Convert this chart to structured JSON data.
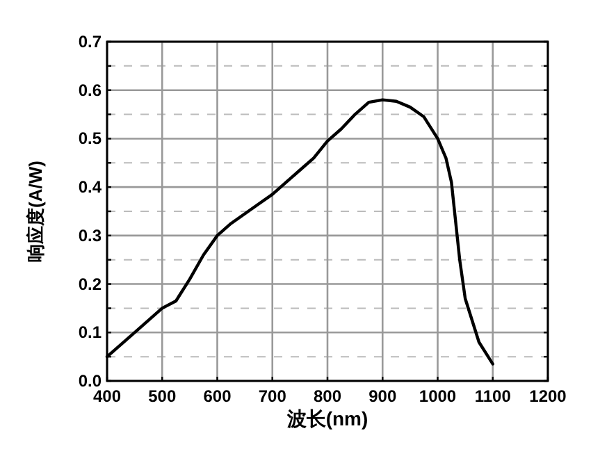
{
  "chart_data": {
    "type": "line",
    "xlabel": "波长(nm)",
    "ylabel": "响应度(A/W)",
    "x": [
      400,
      450,
      500,
      525,
      550,
      575,
      600,
      625,
      650,
      675,
      700,
      725,
      750,
      775,
      800,
      825,
      850,
      875,
      900,
      925,
      950,
      975,
      1000,
      1015,
      1025,
      1040,
      1050,
      1075,
      1100
    ],
    "series": [
      {
        "color": "#000000",
        "values": [
          0.05,
          0.1,
          0.15,
          0.165,
          0.21,
          0.26,
          0.3,
          0.325,
          0.345,
          0.365,
          0.385,
          0.41,
          0.435,
          0.46,
          0.495,
          0.52,
          0.55,
          0.575,
          0.58,
          0.577,
          0.565,
          0.545,
          0.5,
          0.46,
          0.41,
          0.25,
          0.17,
          0.08,
          0.035
        ]
      }
    ],
    "xlim": [
      400,
      1200
    ],
    "xticks": [
      400,
      500,
      600,
      700,
      800,
      900,
      1000,
      1100,
      1200
    ],
    "ylim": [
      0,
      0.7
    ],
    "yticks": [
      {
        "value": 0,
        "label": "0.0"
      },
      {
        "value": 0.05,
        "label": null
      },
      0.1,
      {
        "value": 0.15,
        "label": null
      },
      0.2,
      {
        "value": 0.25,
        "label": null
      },
      0.3,
      {
        "value": 0.35,
        "label": null
      },
      0.4,
      {
        "value": 0.45,
        "label": null
      },
      0.5,
      {
        "value": 0.55,
        "label": null
      },
      0.6,
      {
        "value": 0.65,
        "label": null
      },
      0.7
    ],
    "grid": true,
    "marker": "none",
    "line_style": "solid"
  }
}
